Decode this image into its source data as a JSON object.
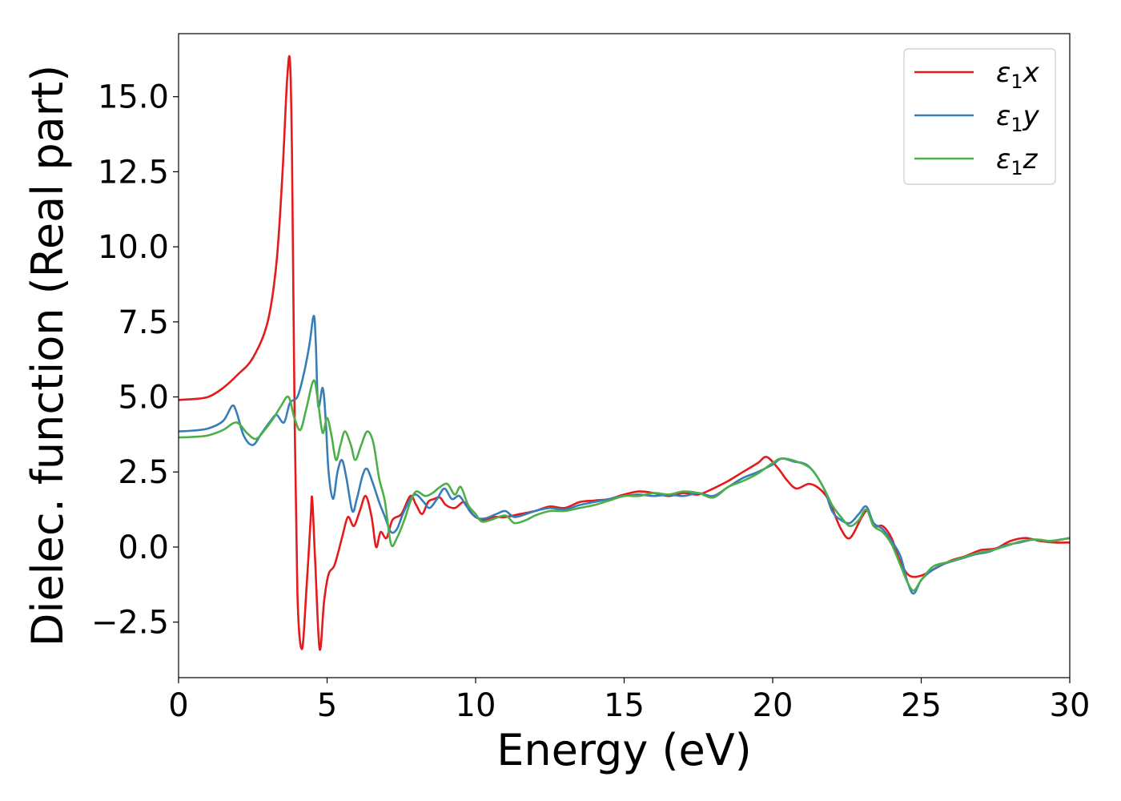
{
  "chart_data": {
    "type": "line",
    "xlabel": "Energy (eV)",
    "ylabel": "Dielec. function (Real part)",
    "xlim": [
      0,
      30
    ],
    "ylim": [
      -4.35,
      17.1
    ],
    "xticks": [
      0,
      5,
      10,
      15,
      20,
      25,
      30
    ],
    "xtick_labels": [
      "0",
      "5",
      "10",
      "15",
      "20",
      "25",
      "30"
    ],
    "yticks": [
      -2.5,
      0.0,
      2.5,
      5.0,
      7.5,
      10.0,
      12.5,
      15.0
    ],
    "ytick_labels": [
      "−2.5",
      "0.0",
      "2.5",
      "5.0",
      "7.5",
      "10.0",
      "12.5",
      "15.0"
    ],
    "grid": false,
    "legend_position": "top-right",
    "series": [
      {
        "name": "ε₁x",
        "legend_sub": "1",
        "legend_base": "ε",
        "legend_suffix": "x",
        "color": "#e41a1c",
        "points": [
          [
            0,
            4.9
          ],
          [
            0.5,
            4.93
          ],
          [
            1,
            5.0
          ],
          [
            1.5,
            5.3
          ],
          [
            2,
            5.75
          ],
          [
            2.5,
            6.3
          ],
          [
            3,
            7.5
          ],
          [
            3.3,
            9.5
          ],
          [
            3.5,
            12.5
          ],
          [
            3.65,
            15.5
          ],
          [
            3.75,
            16.2
          ],
          [
            3.82,
            13.0
          ],
          [
            3.9,
            5.0
          ],
          [
            4.0,
            -1.5
          ],
          [
            4.15,
            -3.4
          ],
          [
            4.3,
            -1.5
          ],
          [
            4.45,
            1.0
          ],
          [
            4.5,
            1.6
          ],
          [
            4.6,
            -0.5
          ],
          [
            4.75,
            -3.4
          ],
          [
            4.9,
            -1.8
          ],
          [
            5.05,
            -0.9
          ],
          [
            5.25,
            -0.6
          ],
          [
            5.5,
            0.3
          ],
          [
            5.7,
            1.0
          ],
          [
            5.9,
            0.7
          ],
          [
            6.1,
            1.2
          ],
          [
            6.3,
            1.7
          ],
          [
            6.5,
            1.0
          ],
          [
            6.65,
            0.0
          ],
          [
            6.8,
            0.5
          ],
          [
            7.0,
            0.3
          ],
          [
            7.2,
            0.9
          ],
          [
            7.5,
            1.1
          ],
          [
            7.8,
            1.7
          ],
          [
            8.0,
            1.4
          ],
          [
            8.2,
            1.1
          ],
          [
            8.4,
            1.5
          ],
          [
            8.6,
            1.6
          ],
          [
            8.8,
            1.65
          ],
          [
            9.0,
            1.4
          ],
          [
            9.3,
            1.3
          ],
          [
            9.6,
            1.5
          ],
          [
            9.8,
            1.2
          ],
          [
            10.0,
            1.0
          ],
          [
            10.3,
            0.9
          ],
          [
            10.6,
            1.0
          ],
          [
            11.0,
            1.0
          ],
          [
            11.5,
            1.1
          ],
          [
            12.0,
            1.2
          ],
          [
            12.5,
            1.35
          ],
          [
            13.0,
            1.3
          ],
          [
            13.5,
            1.5
          ],
          [
            14.0,
            1.55
          ],
          [
            14.5,
            1.6
          ],
          [
            15.0,
            1.75
          ],
          [
            15.5,
            1.85
          ],
          [
            16.0,
            1.8
          ],
          [
            16.5,
            1.7
          ],
          [
            17.0,
            1.8
          ],
          [
            17.5,
            1.75
          ],
          [
            18.0,
            1.95
          ],
          [
            18.5,
            2.2
          ],
          [
            19.0,
            2.5
          ],
          [
            19.5,
            2.8
          ],
          [
            19.8,
            3.0
          ],
          [
            20.2,
            2.6
          ],
          [
            20.5,
            2.2
          ],
          [
            20.8,
            1.95
          ],
          [
            21.2,
            2.1
          ],
          [
            21.5,
            2.0
          ],
          [
            21.8,
            1.7
          ],
          [
            22.0,
            1.3
          ],
          [
            22.3,
            0.6
          ],
          [
            22.6,
            0.3
          ],
          [
            23.0,
            1.0
          ],
          [
            23.2,
            1.2
          ],
          [
            23.4,
            0.7
          ],
          [
            23.7,
            0.7
          ],
          [
            24.0,
            0.3
          ],
          [
            24.3,
            -0.5
          ],
          [
            24.6,
            -0.95
          ],
          [
            25.0,
            -0.95
          ],
          [
            25.5,
            -0.7
          ],
          [
            26.0,
            -0.45
          ],
          [
            26.5,
            -0.3
          ],
          [
            27.0,
            -0.1
          ],
          [
            27.5,
            -0.05
          ],
          [
            28.0,
            0.2
          ],
          [
            28.5,
            0.3
          ],
          [
            29.0,
            0.2
          ],
          [
            29.5,
            0.15
          ],
          [
            30.0,
            0.15
          ]
        ]
      },
      {
        "name": "ε₁y",
        "legend_sub": "1",
        "legend_base": "ε",
        "legend_suffix": "y",
        "color": "#377eb8",
        "points": [
          [
            0,
            3.85
          ],
          [
            0.5,
            3.88
          ],
          [
            1,
            3.95
          ],
          [
            1.5,
            4.2
          ],
          [
            1.8,
            4.7
          ],
          [
            1.95,
            4.5
          ],
          [
            2.2,
            3.7
          ],
          [
            2.5,
            3.4
          ],
          [
            2.8,
            3.8
          ],
          [
            3.1,
            4.2
          ],
          [
            3.3,
            4.4
          ],
          [
            3.55,
            4.15
          ],
          [
            3.75,
            4.8
          ],
          [
            4.0,
            5.0
          ],
          [
            4.2,
            5.7
          ],
          [
            4.4,
            6.7
          ],
          [
            4.55,
            7.7
          ],
          [
            4.62,
            6.8
          ],
          [
            4.7,
            4.7
          ],
          [
            4.85,
            5.3
          ],
          [
            4.95,
            4.3
          ],
          [
            5.05,
            2.5
          ],
          [
            5.2,
            1.6
          ],
          [
            5.35,
            2.5
          ],
          [
            5.5,
            2.9
          ],
          [
            5.65,
            2.3
          ],
          [
            5.85,
            1.2
          ],
          [
            6.0,
            1.6
          ],
          [
            6.2,
            2.4
          ],
          [
            6.35,
            2.6
          ],
          [
            6.55,
            2.1
          ],
          [
            6.75,
            1.5
          ],
          [
            6.95,
            1.0
          ],
          [
            7.15,
            0.5
          ],
          [
            7.35,
            0.6
          ],
          [
            7.55,
            1.1
          ],
          [
            7.8,
            1.6
          ],
          [
            8.0,
            1.75
          ],
          [
            8.25,
            1.5
          ],
          [
            8.45,
            1.3
          ],
          [
            8.7,
            1.6
          ],
          [
            8.95,
            1.95
          ],
          [
            9.2,
            1.6
          ],
          [
            9.45,
            1.7
          ],
          [
            9.7,
            1.35
          ],
          [
            10.0,
            1.0
          ],
          [
            10.3,
            0.95
          ],
          [
            10.7,
            1.1
          ],
          [
            11.0,
            1.2
          ],
          [
            11.3,
            1.0
          ],
          [
            11.7,
            1.1
          ],
          [
            12.0,
            1.2
          ],
          [
            12.5,
            1.3
          ],
          [
            13.0,
            1.25
          ],
          [
            13.5,
            1.4
          ],
          [
            14.0,
            1.5
          ],
          [
            14.5,
            1.6
          ],
          [
            15.0,
            1.7
          ],
          [
            15.5,
            1.75
          ],
          [
            16.0,
            1.7
          ],
          [
            16.5,
            1.75
          ],
          [
            17.0,
            1.7
          ],
          [
            17.5,
            1.8
          ],
          [
            18.0,
            1.7
          ],
          [
            18.5,
            2.0
          ],
          [
            19.0,
            2.3
          ],
          [
            19.5,
            2.5
          ],
          [
            20.0,
            2.75
          ],
          [
            20.3,
            2.95
          ],
          [
            20.7,
            2.85
          ],
          [
            21.2,
            2.7
          ],
          [
            21.7,
            2.0
          ],
          [
            22.0,
            1.2
          ],
          [
            22.3,
            0.9
          ],
          [
            22.6,
            0.8
          ],
          [
            22.9,
            1.1
          ],
          [
            23.15,
            1.35
          ],
          [
            23.4,
            0.8
          ],
          [
            23.7,
            0.6
          ],
          [
            24.0,
            0.2
          ],
          [
            24.3,
            -0.3
          ],
          [
            24.55,
            -1.2
          ],
          [
            24.75,
            -1.55
          ],
          [
            25.0,
            -1.1
          ],
          [
            25.4,
            -0.75
          ],
          [
            25.8,
            -0.55
          ],
          [
            26.3,
            -0.4
          ],
          [
            26.8,
            -0.25
          ],
          [
            27.3,
            -0.15
          ],
          [
            27.8,
            0.05
          ],
          [
            28.3,
            0.15
          ],
          [
            28.8,
            0.25
          ],
          [
            29.3,
            0.2
          ],
          [
            30.0,
            0.3
          ]
        ]
      },
      {
        "name": "ε₁z",
        "legend_sub": "1",
        "legend_base": "ε",
        "legend_suffix": "z",
        "color": "#4daf4a",
        "points": [
          [
            0,
            3.65
          ],
          [
            0.5,
            3.67
          ],
          [
            1,
            3.72
          ],
          [
            1.5,
            3.9
          ],
          [
            1.95,
            4.15
          ],
          [
            2.3,
            3.8
          ],
          [
            2.6,
            3.6
          ],
          [
            2.9,
            3.9
          ],
          [
            3.2,
            4.3
          ],
          [
            3.45,
            4.7
          ],
          [
            3.7,
            5.0
          ],
          [
            3.9,
            4.3
          ],
          [
            4.1,
            3.9
          ],
          [
            4.3,
            4.6
          ],
          [
            4.55,
            5.55
          ],
          [
            4.7,
            4.8
          ],
          [
            4.85,
            3.8
          ],
          [
            5.0,
            4.3
          ],
          [
            5.15,
            3.7
          ],
          [
            5.3,
            2.9
          ],
          [
            5.45,
            3.4
          ],
          [
            5.6,
            3.85
          ],
          [
            5.8,
            3.4
          ],
          [
            5.95,
            2.9
          ],
          [
            6.15,
            3.4
          ],
          [
            6.35,
            3.85
          ],
          [
            6.55,
            3.5
          ],
          [
            6.75,
            2.3
          ],
          [
            6.95,
            1.5
          ],
          [
            7.15,
            0.1
          ],
          [
            7.35,
            0.3
          ],
          [
            7.6,
            0.9
          ],
          [
            7.8,
            1.5
          ],
          [
            8.0,
            1.85
          ],
          [
            8.3,
            1.7
          ],
          [
            8.55,
            1.8
          ],
          [
            8.8,
            2.0
          ],
          [
            9.05,
            2.1
          ],
          [
            9.3,
            1.75
          ],
          [
            9.5,
            2.0
          ],
          [
            9.75,
            1.4
          ],
          [
            10.0,
            1.1
          ],
          [
            10.2,
            0.85
          ],
          [
            10.5,
            0.9
          ],
          [
            11.0,
            1.05
          ],
          [
            11.3,
            0.8
          ],
          [
            11.7,
            0.9
          ],
          [
            12.0,
            1.05
          ],
          [
            12.5,
            1.2
          ],
          [
            13.0,
            1.2
          ],
          [
            13.5,
            1.3
          ],
          [
            14.0,
            1.4
          ],
          [
            14.5,
            1.55
          ],
          [
            15.0,
            1.7
          ],
          [
            15.5,
            1.7
          ],
          [
            16.0,
            1.8
          ],
          [
            16.5,
            1.75
          ],
          [
            17.0,
            1.85
          ],
          [
            17.5,
            1.8
          ],
          [
            18.0,
            1.65
          ],
          [
            18.5,
            2.0
          ],
          [
            19.0,
            2.2
          ],
          [
            19.5,
            2.45
          ],
          [
            20.0,
            2.8
          ],
          [
            20.3,
            2.95
          ],
          [
            20.8,
            2.85
          ],
          [
            21.3,
            2.6
          ],
          [
            21.7,
            2.0
          ],
          [
            22.0,
            1.4
          ],
          [
            22.3,
            1.0
          ],
          [
            22.6,
            0.7
          ],
          [
            22.9,
            0.9
          ],
          [
            23.15,
            1.25
          ],
          [
            23.4,
            0.7
          ],
          [
            23.7,
            0.5
          ],
          [
            24.0,
            0.1
          ],
          [
            24.3,
            -0.6
          ],
          [
            24.55,
            -1.2
          ],
          [
            24.75,
            -1.45
          ],
          [
            25.0,
            -1.1
          ],
          [
            25.4,
            -0.65
          ],
          [
            25.9,
            -0.5
          ],
          [
            26.4,
            -0.35
          ],
          [
            26.9,
            -0.2
          ],
          [
            27.4,
            -0.1
          ],
          [
            27.9,
            0.05
          ],
          [
            28.4,
            0.2
          ],
          [
            28.9,
            0.25
          ],
          [
            29.4,
            0.2
          ],
          [
            30.0,
            0.3
          ]
        ]
      }
    ]
  }
}
